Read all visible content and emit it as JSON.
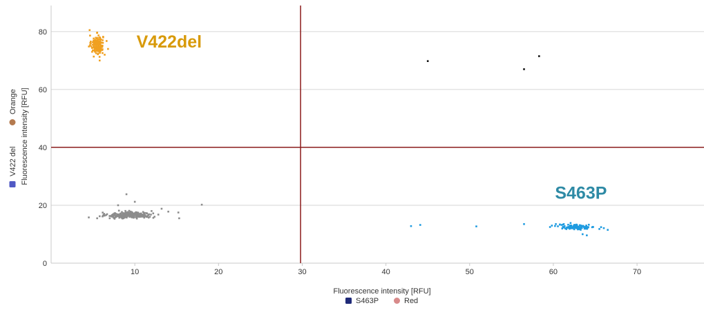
{
  "chart_data": {
    "type": "scatter",
    "xlabel": "Fluorescence intensity [RFU]",
    "ylabel": "Fluorescence intensity [RFU]",
    "xlim": [
      0,
      78
    ],
    "ylim": [
      0,
      89
    ],
    "x_ticks": [
      "10",
      "20",
      "30",
      "40",
      "50",
      "60",
      "70"
    ],
    "y_ticks": [
      "0",
      "20",
      "40",
      "60",
      "80"
    ],
    "grid": "horizontal",
    "threshold_x": 29.8,
    "threshold_y": 40,
    "threshold_color": "#8b1a1a",
    "legend_x": [
      {
        "label": "S463P",
        "color": "#1f2a78",
        "shape": "square"
      },
      {
        "label": "Red",
        "color": "#d88a8a",
        "shape": "circle"
      }
    ],
    "legend_y": [
      {
        "label": "Orange",
        "color": "#b47a4f",
        "shape": "circle"
      },
      {
        "label": "V422 del",
        "color": "#5059c4",
        "shape": "square"
      }
    ],
    "annotations": [
      {
        "text": "V422del",
        "x": 10.2,
        "y": 74.5,
        "color": "#d89a0a"
      },
      {
        "text": "S463P",
        "x": 60.2,
        "y": 22.3,
        "color": "#2e8aa5"
      }
    ],
    "series": [
      {
        "color": "#f0a020",
        "cluster": {
          "cx": 5.5,
          "cy": 75.5,
          "sx": 0.35,
          "sy": 1.6,
          "n": 170
        },
        "points": [
          [
            4.6,
            80.5
          ],
          [
            6.4,
            72.0
          ],
          [
            5.8,
            70.0
          ],
          [
            6.8,
            74.0
          ],
          [
            4.9,
            73.0
          ]
        ]
      },
      {
        "color": "#8c8c8c",
        "cluster": {
          "cx": 9.5,
          "cy": 16.6,
          "sx": 1.3,
          "sy": 0.55,
          "n": 260
        },
        "points": [
          [
            4.5,
            15.8
          ],
          [
            5.5,
            15.5
          ],
          [
            5.8,
            16.2
          ],
          [
            7.0,
            15.5
          ],
          [
            9.0,
            23.8
          ],
          [
            10.0,
            21.2
          ],
          [
            12.0,
            18.0
          ],
          [
            13.2,
            18.8
          ],
          [
            14.0,
            17.8
          ],
          [
            15.2,
            17.5
          ],
          [
            15.3,
            15.5
          ],
          [
            18.0,
            20.2
          ],
          [
            8.0,
            20.0
          ],
          [
            11.5,
            16.0
          ]
        ]
      },
      {
        "color": "#1e9be0",
        "cluster": {
          "cx": 62.8,
          "cy": 12.5,
          "sx": 1.1,
          "sy": 0.45,
          "n": 120
        },
        "points": [
          [
            43.0,
            12.8
          ],
          [
            44.1,
            13.2
          ],
          [
            50.8,
            12.7
          ],
          [
            56.5,
            13.5
          ],
          [
            60.3,
            13.5
          ],
          [
            61.0,
            13.2
          ],
          [
            65.5,
            11.8
          ],
          [
            66.5,
            11.5
          ],
          [
            63.5,
            10.0
          ],
          [
            64.0,
            9.6
          ]
        ]
      },
      {
        "color": "#111111",
        "cluster": null,
        "points": [
          [
            45.0,
            69.8
          ],
          [
            56.5,
            67.0
          ],
          [
            58.3,
            71.5
          ]
        ]
      }
    ]
  }
}
